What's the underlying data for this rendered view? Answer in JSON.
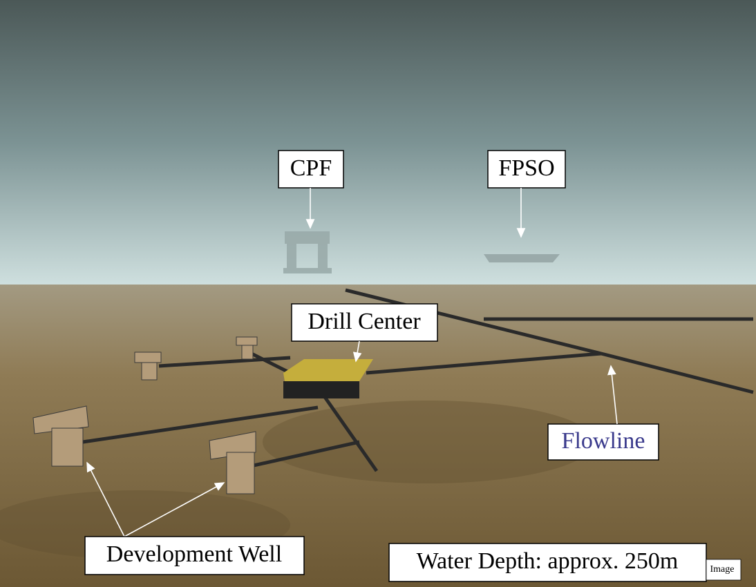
{
  "labels": {
    "cpf": "CPF",
    "fpso": "FPSO",
    "drill_center": "Drill Center",
    "flowline": "Flowline",
    "development_well": "Development Well",
    "water_depth": "Water Depth: approx. 250m",
    "image_credit": "Image"
  }
}
